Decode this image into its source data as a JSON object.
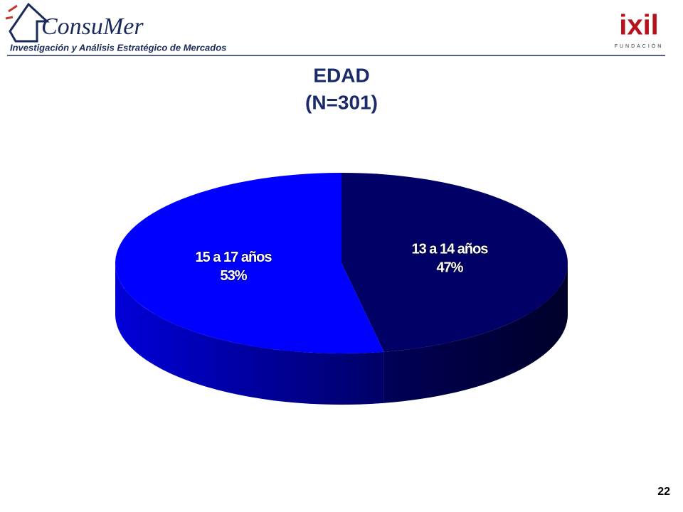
{
  "header": {
    "logo": "ConsuMer",
    "tagline": "Investigación y Análisis Estratégico de Mercados",
    "partner": "ixil",
    "partner_sub": "FUNDACIÓN"
  },
  "chart_data": {
    "type": "pie",
    "title": "EDAD",
    "subtitle": "(N=301)",
    "categories": [
      "13 a 14 años",
      "15 a 17 años"
    ],
    "values": [
      47,
      53
    ],
    "value_labels": [
      "47%",
      "53%"
    ],
    "colors": [
      "#000066",
      "#0000ff"
    ]
  },
  "page_number": "22"
}
